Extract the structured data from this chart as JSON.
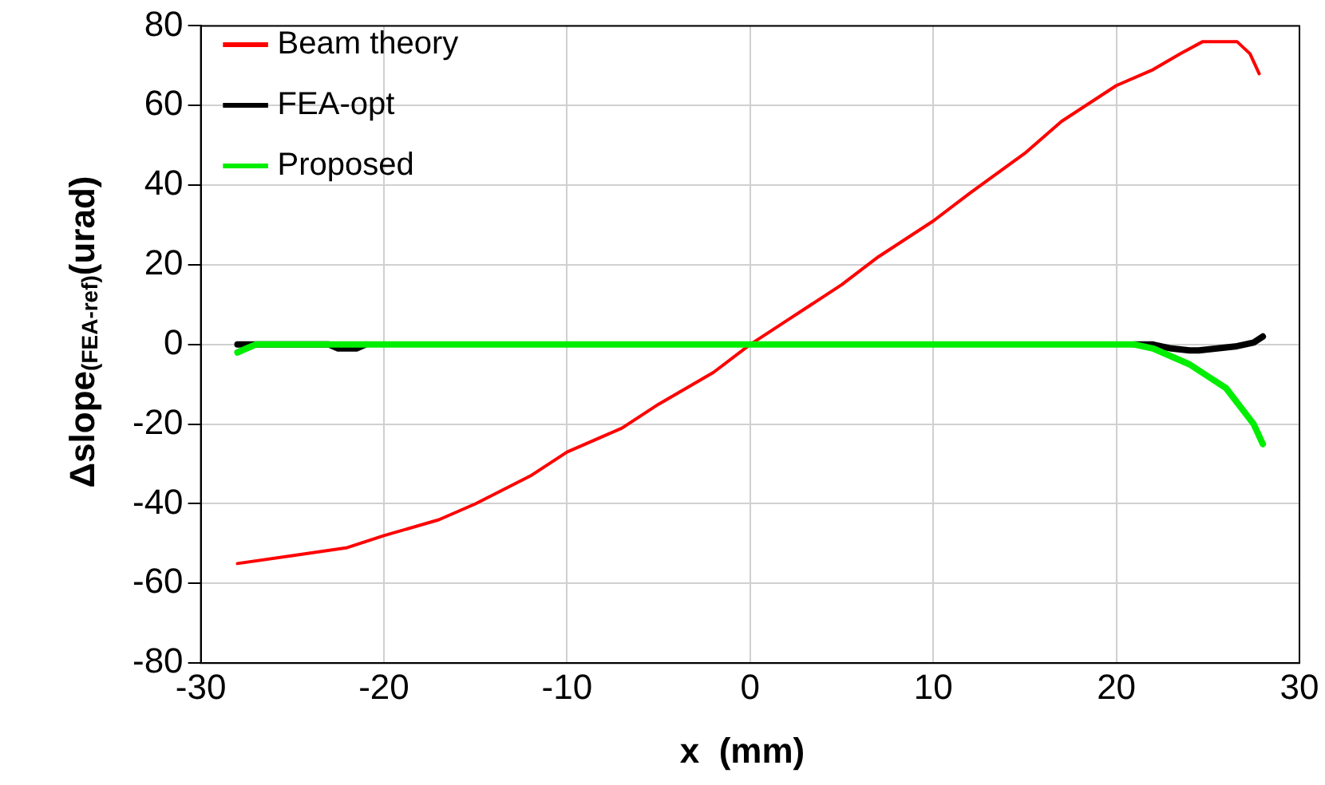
{
  "chart_data": {
    "type": "line",
    "xlabel": "x  (mm)",
    "ylabel": "Δslope$_{(FEA-ref)}$(urad)",
    "xlim": [
      -30,
      30
    ],
    "xticks": [
      -30,
      -20,
      -10,
      0,
      10,
      20,
      30
    ],
    "ylim": [
      -80,
      80
    ],
    "yticks": [
      -80,
      -60,
      -40,
      -20,
      0,
      20,
      40,
      60,
      80
    ],
    "grid": true,
    "legend": "top left",
    "marker": "none",
    "line_style": "solid",
    "series": [
      {
        "name": "Beam theory",
        "color": "#ff0000",
        "x": [
          -28,
          -25,
          -22,
          -20,
          -17,
          -15,
          -12,
          -10,
          -7,
          -5,
          -2,
          0,
          2,
          5,
          7,
          10,
          12,
          15,
          17,
          20,
          22,
          23.5,
          24.7,
          26.6,
          27.3,
          27.8
        ],
        "values": [
          -55,
          -53,
          -51,
          -48,
          -44,
          -40,
          -33,
          -27,
          -21,
          -15,
          -7,
          0,
          6,
          15,
          22,
          31,
          38,
          48,
          56,
          65,
          69,
          73,
          76,
          76,
          73,
          68
        ]
      },
      {
        "name": "FEA-opt",
        "color": "#000000",
        "x": [
          -28,
          -23,
          -22.5,
          -21.5,
          -21,
          0,
          21,
          22,
          23,
          24,
          24.5,
          25.5,
          26.5,
          27.5,
          28
        ],
        "values": [
          0,
          0,
          -1,
          -1,
          0,
          null,
          0,
          0,
          -1,
          -1.5,
          -1.5,
          -1,
          -0.5,
          0.5,
          2
        ]
      },
      {
        "name": "Proposed",
        "color": "#00ee00",
        "x": [
          -28,
          -27.5,
          -27,
          0,
          21,
          22,
          23,
          24,
          25,
          26,
          26.5,
          27,
          27.5,
          28
        ],
        "values": [
          -2,
          -1,
          0,
          0,
          0,
          -1,
          -3,
          -5,
          -8,
          -11,
          -14,
          -17,
          -20,
          -25
        ]
      }
    ]
  }
}
